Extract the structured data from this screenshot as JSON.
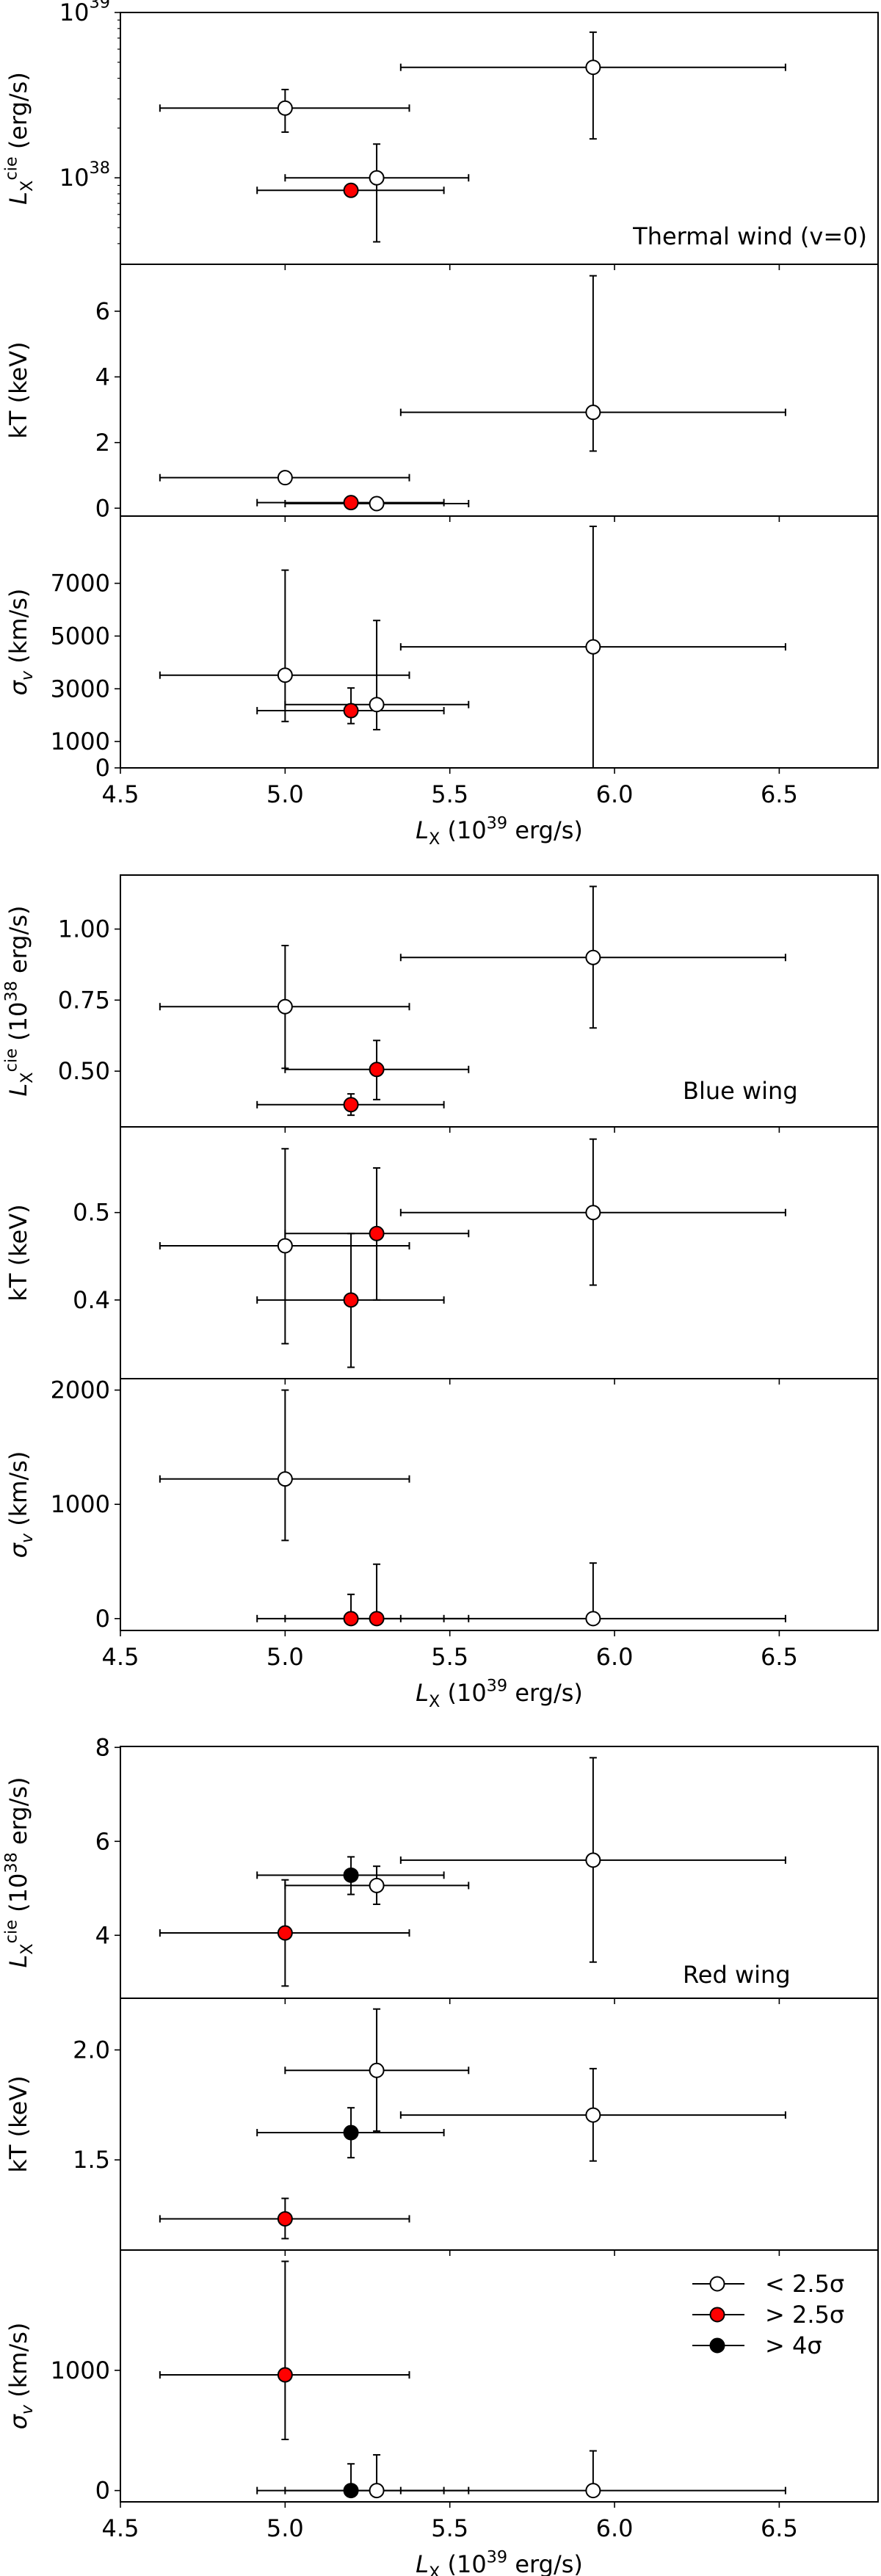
{
  "colors": {
    "low": "#ffffff",
    "mid": "#ff0000",
    "high": "#000000",
    "axis": "#000000"
  },
  "legend": {
    "placement": "top-right",
    "entries": [
      {
        "label": "< 2.5σ",
        "class": "low"
      },
      {
        "label": "> 2.5σ",
        "class": "mid"
      },
      {
        "label": "> 4σ",
        "class": "high"
      }
    ]
  },
  "chart_data": [
    {
      "type": "scatter",
      "xlabel": "$L$_{X} (10^{39} erg/s)",
      "xlim": [
        4.5,
        6.8
      ],
      "xticks": [
        4.5,
        5.0,
        5.5,
        6.0,
        6.5
      ],
      "xticklabels": [
        "4.5",
        "5.0",
        "5.5",
        "6.0",
        "6.5"
      ],
      "panels": [
        {
          "ylabel": "$L$_{X}^{cie} (erg/s)",
          "yscale": "log",
          "ylim": [
            3e+37,
            1e+39
          ],
          "yticks": [
            1e+38,
            1e+39
          ],
          "yticklabels": [
            "10^{38}",
            "10^{39}"
          ],
          "annotation": "Thermal wind (v=0)",
          "points": [
            {
              "x": 5.0,
              "xerr": [
                4.62,
                5.377
              ],
              "y": 2.64e+38,
              "yerr": [
                1.89e+38,
                3.42e+38
              ],
              "class": "low"
            },
            {
              "x": 5.278,
              "xerr": [
                5.0,
                5.557
              ],
              "y": 1e+38,
              "yerr": [
                4.1e+37,
                1.6e+38
              ],
              "class": "low"
            },
            {
              "x": 5.2,
              "xerr": [
                4.915,
                5.482
              ],
              "y": 8.4e+37,
              "yerr": [
                7.8e+37,
                9e+37
              ],
              "class": "mid"
            },
            {
              "x": 5.935,
              "xerr": [
                5.351,
                6.519
              ],
              "y": 4.66e+38,
              "yerr": [
                1.72e+38,
                7.6e+38
              ],
              "class": "low"
            }
          ]
        },
        {
          "ylabel": "kT (keV)",
          "yscale": "linear",
          "ylim": [
            -0.24,
            7.43
          ],
          "yticks": [
            0,
            2,
            4,
            6
          ],
          "yticklabels": [
            "0",
            "2",
            "4",
            "6"
          ],
          "points": [
            {
              "x": 5.0,
              "xerr": [
                4.62,
                5.377
              ],
              "y": 0.93,
              "yerr": [
                0.9,
                0.96
              ],
              "class": "low"
            },
            {
              "x": 5.278,
              "xerr": [
                5.0,
                5.557
              ],
              "y": 0.14,
              "yerr": [
                0.11,
                0.17
              ],
              "class": "low"
            },
            {
              "x": 5.2,
              "xerr": [
                4.915,
                5.482
              ],
              "y": 0.17,
              "yerr": [
                0.15,
                0.19
              ],
              "class": "mid"
            },
            {
              "x": 5.935,
              "xerr": [
                5.351,
                6.519
              ],
              "y": 2.92,
              "yerr": [
                1.74,
                7.08
              ],
              "class": "low"
            }
          ]
        },
        {
          "ylabel": "$σ$_{$v$} (km/s)",
          "yscale": "linear",
          "ylim": [
            0,
            9550
          ],
          "yticks": [
            0,
            1000,
            3000,
            5000,
            7000
          ],
          "yticklabels": [
            "0",
            "1000",
            "3000",
            "5000",
            "7000"
          ],
          "points": [
            {
              "x": 5.0,
              "xerr": [
                4.62,
                5.377
              ],
              "y": 3516,
              "yerr": [
                1760,
                7500
              ],
              "class": "low"
            },
            {
              "x": 5.278,
              "xerr": [
                5.0,
                5.557
              ],
              "y": 2400,
              "yerr": [
                1450,
                5590
              ],
              "class": "low"
            },
            {
              "x": 5.2,
              "xerr": [
                4.915,
                5.482
              ],
              "y": 2170,
              "yerr": [
                1680,
                3030
              ],
              "class": "mid"
            },
            {
              "x": 5.935,
              "xerr": [
                5.351,
                6.519
              ],
              "y": 4590,
              "yerr": [
                0,
                9160
              ],
              "class": "low"
            }
          ]
        }
      ]
    },
    {
      "type": "scatter",
      "xlabel": "$L$_{X} (10^{39} erg/s)",
      "xlim": [
        4.5,
        6.8
      ],
      "xticks": [
        4.5,
        5.0,
        5.5,
        6.0,
        6.5
      ],
      "xticklabels": [
        "4.5",
        "5.0",
        "5.5",
        "6.0",
        "6.5"
      ],
      "panels": [
        {
          "ylabel": "$L$_{X}^{cie} (10^{38} erg/s)",
          "yscale": "linear",
          "ylim": [
            0.304,
            1.19
          ],
          "yticks": [
            0.5,
            0.75,
            1.0
          ],
          "yticklabels": [
            "0.50",
            "0.75",
            "1.00"
          ],
          "annotation": "Blue wing",
          "points": [
            {
              "x": 5.0,
              "xerr": [
                4.62,
                5.377
              ],
              "y": 0.727,
              "yerr": [
                0.51,
                0.942
              ],
              "class": "low"
            },
            {
              "x": 5.278,
              "xerr": [
                5.0,
                5.557
              ],
              "y": 0.506,
              "yerr": [
                0.4,
                0.608
              ],
              "class": "mid"
            },
            {
              "x": 5.2,
              "xerr": [
                4.915,
                5.482
              ],
              "y": 0.382,
              "yerr": [
                0.345,
                0.42
              ],
              "class": "mid"
            },
            {
              "x": 5.935,
              "xerr": [
                5.351,
                6.519
              ],
              "y": 0.9,
              "yerr": [
                0.652,
                1.15
              ],
              "class": "low"
            }
          ]
        },
        {
          "ylabel": "kT (keV)",
          "yscale": "linear",
          "ylim": [
            0.31,
            0.598
          ],
          "yticks": [
            0.4,
            0.5
          ],
          "yticklabels": [
            "0.4",
            "0.5"
          ],
          "points": [
            {
              "x": 5.0,
              "xerr": [
                4.62,
                5.377
              ],
              "y": 0.462,
              "yerr": [
                0.35,
                0.573
              ],
              "class": "low"
            },
            {
              "x": 5.278,
              "xerr": [
                5.0,
                5.557
              ],
              "y": 0.476,
              "yerr": [
                0.4,
                0.551
              ],
              "class": "mid"
            },
            {
              "x": 5.2,
              "xerr": [
                4.915,
                5.482
              ],
              "y": 0.4,
              "yerr": [
                0.323,
                0.476
              ],
              "class": "mid"
            },
            {
              "x": 5.935,
              "xerr": [
                5.351,
                6.519
              ],
              "y": 0.5,
              "yerr": [
                0.417,
                0.584
              ],
              "class": "low"
            }
          ]
        },
        {
          "ylabel": "$σ$_{$v$} (km/s)",
          "yscale": "linear",
          "ylim": [
            -104,
            2100
          ],
          "yticks": [
            0,
            1000,
            2000
          ],
          "yticklabels": [
            "0",
            "1000",
            "2000"
          ],
          "points": [
            {
              "x": 5.0,
              "xerr": [
                4.62,
                5.377
              ],
              "y": 1222,
              "yerr": [
                684,
                2000
              ],
              "class": "low"
            },
            {
              "x": 5.278,
              "xerr": [
                5.0,
                5.557
              ],
              "y": 0,
              "yerr": [
                0,
                476
              ],
              "class": "mid"
            },
            {
              "x": 5.2,
              "xerr": [
                4.915,
                5.482
              ],
              "y": 0,
              "yerr": [
                0,
                212
              ],
              "class": "mid"
            },
            {
              "x": 5.935,
              "xerr": [
                5.351,
                6.519
              ],
              "y": 0,
              "yerr": [
                0,
                486
              ],
              "class": "low"
            }
          ]
        }
      ]
    },
    {
      "type": "scatter",
      "xlabel": "$L$_{X} (10^{39} erg/s)",
      "xlim": [
        4.5,
        6.8
      ],
      "xticks": [
        4.5,
        5.0,
        5.5,
        6.0,
        6.5
      ],
      "xticklabels": [
        "4.5",
        "5.0",
        "5.5",
        "6.0",
        "6.5"
      ],
      "panels": [
        {
          "ylabel": "$L$_{X}^{cie} (10^{38} erg/s)",
          "yscale": "linear",
          "ylim": [
            2.66,
            8.02
          ],
          "yticks": [
            4,
            6,
            8
          ],
          "yticklabels": [
            "4",
            "6",
            "8"
          ],
          "annotation": "Red wing",
          "points": [
            {
              "x": 5.0,
              "xerr": [
                4.62,
                5.377
              ],
              "y": 4.05,
              "yerr": [
                2.92,
                5.18
              ],
              "class": "mid"
            },
            {
              "x": 5.278,
              "xerr": [
                5.0,
                5.557
              ],
              "y": 5.06,
              "yerr": [
                4.66,
                5.47
              ],
              "class": "low"
            },
            {
              "x": 5.2,
              "xerr": [
                4.915,
                5.482
              ],
              "y": 5.28,
              "yerr": [
                4.87,
                5.67
              ],
              "class": "high"
            },
            {
              "x": 5.935,
              "xerr": [
                5.351,
                6.519
              ],
              "y": 5.6,
              "yerr": [
                3.43,
                7.78
              ],
              "class": "low"
            }
          ]
        },
        {
          "ylabel": "kT (keV)",
          "yscale": "linear",
          "ylim": [
            1.09,
            2.235
          ],
          "yticks": [
            1.5,
            2.0
          ],
          "yticklabels": [
            "1.5",
            "2.0"
          ],
          "points": [
            {
              "x": 5.0,
              "xerr": [
                4.62,
                5.377
              ],
              "y": 1.232,
              "yerr": [
                1.142,
                1.325
              ],
              "class": "mid"
            },
            {
              "x": 5.278,
              "xerr": [
                5.0,
                5.557
              ],
              "y": 1.907,
              "yerr": [
                1.631,
                2.186
              ],
              "class": "low"
            },
            {
              "x": 5.2,
              "xerr": [
                4.915,
                5.482
              ],
              "y": 1.624,
              "yerr": [
                1.51,
                1.737
              ],
              "class": "high"
            },
            {
              "x": 5.935,
              "xerr": [
                5.351,
                6.519
              ],
              "y": 1.704,
              "yerr": [
                1.495,
                1.915
              ],
              "class": "low"
            }
          ]
        },
        {
          "ylabel": "$σ$_{$v$} (km/s)",
          "yscale": "linear",
          "ylim": [
            -94,
            2000
          ],
          "yticks": [
            0,
            1000
          ],
          "yticklabels": [
            "0",
            "1000"
          ],
          "legend": true,
          "points": [
            {
              "x": 5.0,
              "xerr": [
                4.62,
                5.377
              ],
              "y": 962,
              "yerr": [
                425,
                1906
              ],
              "class": "mid"
            },
            {
              "x": 5.278,
              "xerr": [
                5.0,
                5.557
              ],
              "y": 0,
              "yerr": [
                0,
                297
              ],
              "class": "low"
            },
            {
              "x": 5.2,
              "xerr": [
                4.915,
                5.482
              ],
              "y": 0,
              "yerr": [
                0,
                222
              ],
              "class": "high"
            },
            {
              "x": 5.935,
              "xerr": [
                5.351,
                6.519
              ],
              "y": 0,
              "yerr": [
                0,
                330
              ],
              "class": "low"
            }
          ]
        }
      ]
    }
  ]
}
